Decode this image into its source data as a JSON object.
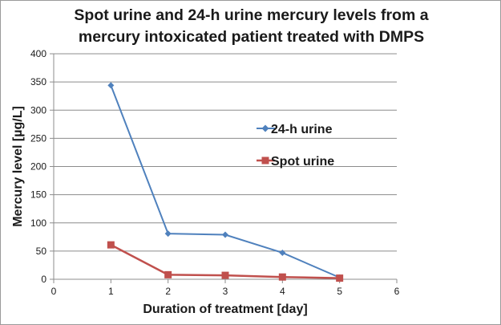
{
  "chart_data": {
    "type": "line",
    "title_lines": [
      "Spot urine and 24-h urine mercury levels from a",
      "mercury intoxicated patient treated with DMPS"
    ],
    "xlabel": "Duration of treatment [day]",
    "ylabel": "Mercury level [µg/L]",
    "xlim": [
      0,
      6
    ],
    "ylim": [
      0,
      400
    ],
    "xticks": [
      0,
      1,
      2,
      3,
      4,
      5,
      6
    ],
    "yticks": [
      0,
      50,
      100,
      150,
      200,
      250,
      300,
      350,
      400
    ],
    "grid": "horizontal",
    "legend_position": "right",
    "series": [
      {
        "name": "24-h urine",
        "color": "#4f81bd",
        "marker": "diamond",
        "x": [
          1,
          2,
          3,
          4,
          5
        ],
        "y": [
          344,
          81,
          79,
          47,
          3
        ]
      },
      {
        "name": "Spot urine",
        "color": "#c0504d",
        "marker": "square",
        "x": [
          1,
          2,
          3,
          4,
          5
        ],
        "y": [
          61,
          8,
          7,
          4,
          2
        ]
      }
    ]
  }
}
